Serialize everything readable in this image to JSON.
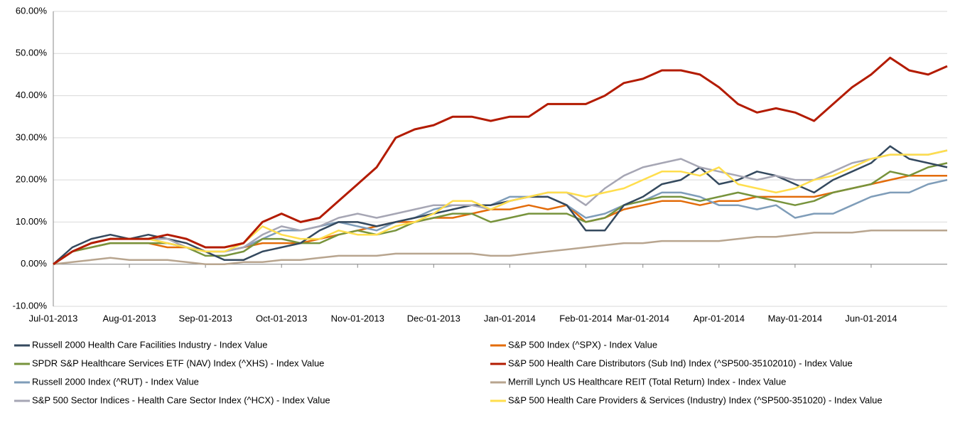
{
  "chart_data": {
    "type": "line",
    "categories": [
      "Jul-01-2013",
      null,
      null,
      null,
      "Aug-01-2013",
      null,
      null,
      null,
      "Sep-01-2013",
      null,
      null,
      null,
      "Oct-01-2013",
      null,
      null,
      null,
      "Nov-01-2013",
      null,
      null,
      null,
      "Dec-01-2013",
      null,
      null,
      null,
      "Jan-01-2014",
      null,
      null,
      null,
      "Feb-01-2014",
      null,
      null,
      "Mar-01-2014",
      null,
      null,
      null,
      "Apr-01-2014",
      null,
      null,
      null,
      "May-01-2014",
      null,
      null,
      null,
      "Jun-01-2014",
      null,
      null,
      null,
      null
    ],
    "ylim": [
      -10,
      60
    ],
    "yticks": [
      {
        "value": -10,
        "label": "-10.00%"
      },
      {
        "value": 0,
        "label": "0.00%"
      },
      {
        "value": 10,
        "label": "10.00%"
      },
      {
        "value": 20,
        "label": "20.00%"
      },
      {
        "value": 30,
        "label": "30.00%"
      },
      {
        "value": 40,
        "label": "40.00%"
      },
      {
        "value": 50,
        "label": "50.00%"
      },
      {
        "value": 60,
        "label": "60.00%"
      }
    ],
    "grid": true,
    "series": [
      {
        "name": "Russell 2000 Health Care Facilities Industry - Index Value",
        "color": "#34495e",
        "values": [
          0,
          4,
          6,
          7,
          6,
          7,
          6,
          5,
          3,
          1,
          1,
          3,
          4,
          5,
          8,
          10,
          10,
          9,
          10,
          11,
          12,
          13,
          14,
          14,
          15,
          16,
          16,
          14,
          8,
          8,
          14,
          16,
          19,
          20,
          23,
          19,
          20,
          22,
          21,
          19,
          17,
          20,
          22,
          24,
          28,
          25,
          24,
          23
        ]
      },
      {
        "name": "SPDR S&P Healthcare Services ETF (NAV) Index (^XHS) - Index Value",
        "color": "#77933c",
        "values": [
          0,
          3,
          4,
          5,
          5,
          5,
          5,
          4,
          2,
          2,
          3,
          6,
          6,
          5,
          5,
          7,
          8,
          7,
          8,
          10,
          11,
          12,
          12,
          10,
          11,
          12,
          12,
          12,
          10,
          11,
          14,
          15,
          16,
          16,
          15,
          16,
          17,
          16,
          15,
          14,
          15,
          17,
          18,
          19,
          22,
          21,
          23,
          24
        ]
      },
      {
        "name": "Russell 2000 Index (^RUT) - Index Value",
        "color": "#7f9db9",
        "values": [
          0,
          3,
          5,
          6,
          6,
          6,
          5,
          4,
          3,
          3,
          4,
          6,
          8,
          8,
          9,
          10,
          9,
          8,
          10,
          11,
          13,
          14,
          14,
          14,
          16,
          16,
          16,
          14,
          11,
          12,
          14,
          15,
          17,
          17,
          16,
          14,
          14,
          13,
          14,
          11,
          12,
          12,
          14,
          16,
          17,
          17,
          19,
          20
        ]
      },
      {
        "name": "S&P 500 Sector Indices - Health Care Sector Index (^HCX) - Index Value",
        "color": "#a6a6b4",
        "values": [
          0,
          3,
          5,
          6,
          6,
          6,
          6,
          4,
          3,
          3,
          4,
          7,
          9,
          8,
          9,
          11,
          12,
          11,
          12,
          13,
          14,
          14,
          14,
          13,
          15,
          16,
          17,
          17,
          14,
          18,
          21,
          23,
          24,
          25,
          23,
          22,
          21,
          20,
          21,
          20,
          20,
          22,
          24,
          25,
          26,
          26,
          26,
          27
        ]
      },
      {
        "name": "S&P 500 Index (^SPX) - Index Value",
        "color": "#e36c0a",
        "values": [
          0,
          3,
          4,
          5,
          5,
          5,
          4,
          4,
          3,
          3,
          4,
          5,
          5,
          5,
          6,
          7,
          8,
          9,
          10,
          10,
          11,
          11,
          12,
          13,
          13,
          14,
          13,
          14,
          10,
          11,
          13,
          14,
          15,
          15,
          14,
          15,
          15,
          16,
          16,
          16,
          16,
          17,
          18,
          19,
          20,
          21,
          21,
          21
        ]
      },
      {
        "name": "S&P 500 Health Care Distributors (Sub Ind) Index (^SP500-35102010) - Index Value",
        "color": "#b31b00",
        "values": [
          0,
          3,
          5,
          6,
          6,
          6,
          7,
          6,
          4,
          4,
          5,
          10,
          12,
          10,
          11,
          15,
          19,
          23,
          30,
          32,
          33,
          35,
          35,
          34,
          35,
          35,
          38,
          38,
          38,
          40,
          43,
          44,
          46,
          46,
          45,
          42,
          38,
          36,
          37,
          36,
          34,
          38,
          42,
          45,
          49,
          46,
          45,
          47
        ]
      },
      {
        "name": "Merrill Lynch US Healthcare REIT (Total Return) Index - Index Value",
        "color": "#b8a58f",
        "values": [
          0,
          0.5,
          1,
          1.5,
          1,
          1,
          1,
          0.5,
          0,
          0,
          0.5,
          0.5,
          1,
          1,
          1.5,
          2,
          2,
          2,
          2.5,
          2.5,
          2.5,
          2.5,
          2.5,
          2,
          2,
          2.5,
          3,
          3.5,
          4,
          4.5,
          5,
          5,
          5.5,
          5.5,
          5.5,
          5.5,
          6,
          6.5,
          6.5,
          7,
          7.5,
          7.5,
          7.5,
          8,
          8,
          8,
          8,
          8
        ]
      },
      {
        "name": "S&P 500 Health Care Providers & Services (Industry) Index (^SP500-351020) - Index Value",
        "color": "#ffde4d",
        "values": [
          0,
          3,
          5,
          6,
          6,
          6,
          5,
          4,
          3,
          3,
          5,
          9,
          7,
          6,
          6,
          8,
          7,
          7,
          9,
          10,
          12,
          15,
          15,
          13,
          15,
          16,
          17,
          17,
          16,
          17,
          18,
          20,
          22,
          22,
          21,
          23,
          19,
          18,
          17,
          18,
          20,
          21,
          23,
          25,
          26,
          26,
          26,
          27
        ]
      }
    ]
  }
}
